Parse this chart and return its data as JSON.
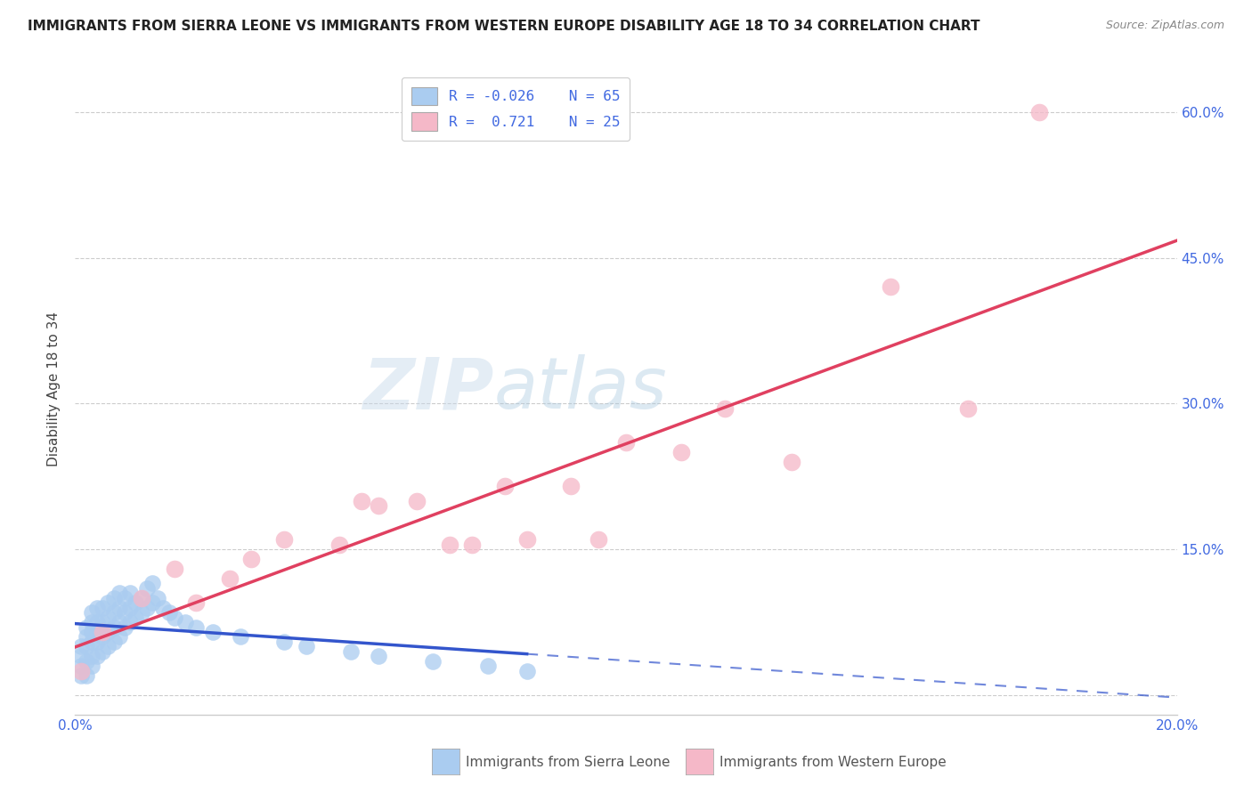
{
  "title": "IMMIGRANTS FROM SIERRA LEONE VS IMMIGRANTS FROM WESTERN EUROPE DISABILITY AGE 18 TO 34 CORRELATION CHART",
  "source": "Source: ZipAtlas.com",
  "ylabel": "Disability Age 18 to 34",
  "xlim": [
    0.0,
    0.2
  ],
  "ylim": [
    -0.02,
    0.65
  ],
  "grid_color": "#cccccc",
  "background_color": "#ffffff",
  "sierra_leone_color": "#aaccf0",
  "western_europe_color": "#f5b8c8",
  "sierra_leone_line_color": "#3355cc",
  "western_europe_line_color": "#e04060",
  "legend_r1": "R = -0.026",
  "legend_n1": "N = 65",
  "legend_r2": "R =  0.721",
  "legend_n2": "N = 25",
  "label1": "Immigrants from Sierra Leone",
  "label2": "Immigrants from Western Europe",
  "watermark_zip": "ZIP",
  "watermark_atlas": "atlas",
  "title_fontsize": 11,
  "source_fontsize": 9,
  "axis_label_color": "#4169e1",
  "sierra_leone_x": [
    0.001,
    0.001,
    0.001,
    0.001,
    0.002,
    0.002,
    0.002,
    0.002,
    0.002,
    0.003,
    0.003,
    0.003,
    0.003,
    0.003,
    0.003,
    0.004,
    0.004,
    0.004,
    0.004,
    0.004,
    0.005,
    0.005,
    0.005,
    0.005,
    0.006,
    0.006,
    0.006,
    0.006,
    0.007,
    0.007,
    0.007,
    0.007,
    0.008,
    0.008,
    0.008,
    0.008,
    0.009,
    0.009,
    0.009,
    0.01,
    0.01,
    0.01,
    0.011,
    0.011,
    0.012,
    0.012,
    0.013,
    0.013,
    0.014,
    0.014,
    0.015,
    0.016,
    0.017,
    0.018,
    0.02,
    0.022,
    0.025,
    0.03,
    0.038,
    0.042,
    0.05,
    0.055,
    0.065,
    0.075,
    0.082
  ],
  "sierra_leone_y": [
    0.02,
    0.03,
    0.04,
    0.05,
    0.02,
    0.035,
    0.05,
    0.06,
    0.07,
    0.03,
    0.04,
    0.055,
    0.065,
    0.075,
    0.085,
    0.04,
    0.055,
    0.065,
    0.075,
    0.09,
    0.045,
    0.06,
    0.075,
    0.09,
    0.05,
    0.065,
    0.08,
    0.095,
    0.055,
    0.07,
    0.085,
    0.1,
    0.06,
    0.075,
    0.09,
    0.105,
    0.07,
    0.085,
    0.1,
    0.075,
    0.09,
    0.105,
    0.08,
    0.095,
    0.085,
    0.1,
    0.09,
    0.11,
    0.095,
    0.115,
    0.1,
    0.09,
    0.085,
    0.08,
    0.075,
    0.07,
    0.065,
    0.06,
    0.055,
    0.05,
    0.045,
    0.04,
    0.035,
    0.03,
    0.025
  ],
  "western_europe_x": [
    0.001,
    0.005,
    0.012,
    0.018,
    0.022,
    0.028,
    0.032,
    0.038,
    0.048,
    0.052,
    0.055,
    0.062,
    0.068,
    0.072,
    0.078,
    0.082,
    0.09,
    0.095,
    0.1,
    0.11,
    0.118,
    0.13,
    0.148,
    0.162,
    0.175
  ],
  "western_europe_y": [
    0.025,
    0.065,
    0.1,
    0.13,
    0.095,
    0.12,
    0.14,
    0.16,
    0.155,
    0.2,
    0.195,
    0.2,
    0.155,
    0.155,
    0.215,
    0.16,
    0.215,
    0.16,
    0.26,
    0.25,
    0.295,
    0.24,
    0.42,
    0.295,
    0.6
  ],
  "sl_line_x_solid_end": 0.075,
  "we_line_x_start": 0.0,
  "we_line_x_end": 0.2
}
